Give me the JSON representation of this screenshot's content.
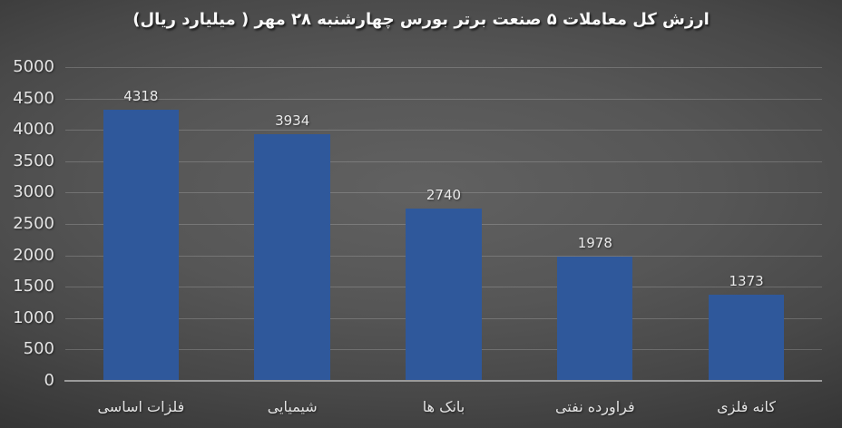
{
  "chart_data": {
    "type": "bar",
    "title": "ارزش کل معاملات ۵ صنعت برتر بورس چهارشنبه ۲۸ مهر ( میلیارد ریال)",
    "categories": [
      "فلزات اساسی",
      "شیمیایی",
      "بانک ها",
      "فراورده نفتی",
      "کانه فلزی"
    ],
    "values": [
      4318,
      3934,
      2740,
      1978,
      1373
    ],
    "xlabel": "",
    "ylabel": "",
    "ylim": [
      0,
      5000
    ],
    "yticks": [
      0,
      500,
      1000,
      1500,
      2000,
      2500,
      3000,
      3500,
      4000,
      4500,
      5000
    ],
    "grid": true,
    "legend": false,
    "rtl": true
  },
  "colors": {
    "bar": "#2F589B",
    "gridline": "rgba(255,255,255,0.18)",
    "axis_line": "#9A9A9A",
    "background_center": "#5E5E5E",
    "background_edge": "#262626",
    "label_text": "#E3E3E3",
    "title_text": "#FAFAFA"
  }
}
